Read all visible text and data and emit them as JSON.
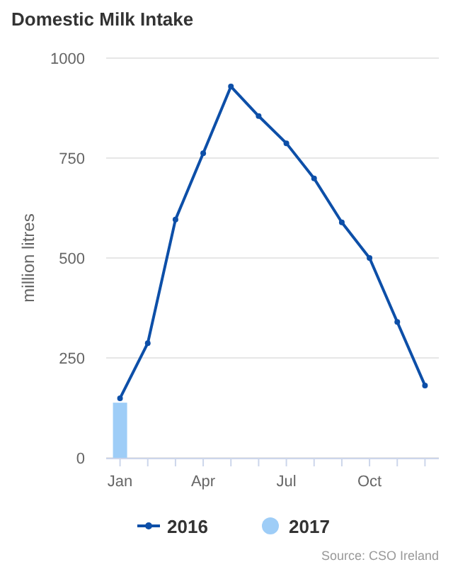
{
  "chart_data": {
    "type": "line",
    "title": "Domestic Milk Intake",
    "ylabel": "million litres",
    "categories": [
      "Jan",
      null,
      null,
      "Apr",
      null,
      null,
      "Jul",
      null,
      null,
      "Oct",
      null,
      null
    ],
    "series": [
      {
        "name": "2016",
        "color": "#0d4fa8",
        "values": [
          149,
          287,
          596,
          762,
          929,
          855,
          787,
          699,
          589,
          500,
          340,
          181
        ]
      },
      {
        "name": "2017",
        "type": "bar",
        "color": "#9ecdf7",
        "values": [
          138,
          null,
          null,
          null,
          null,
          null,
          null,
          null,
          null,
          null,
          null,
          null
        ]
      }
    ],
    "ylim": [
      0,
      1000
    ],
    "yticks": [
      0,
      250,
      500,
      750,
      1000
    ],
    "grid": "y",
    "legend": "bottom",
    "marker": "circle",
    "line_style": "solid",
    "annotations": [
      "Source: CSO Ireland"
    ]
  }
}
